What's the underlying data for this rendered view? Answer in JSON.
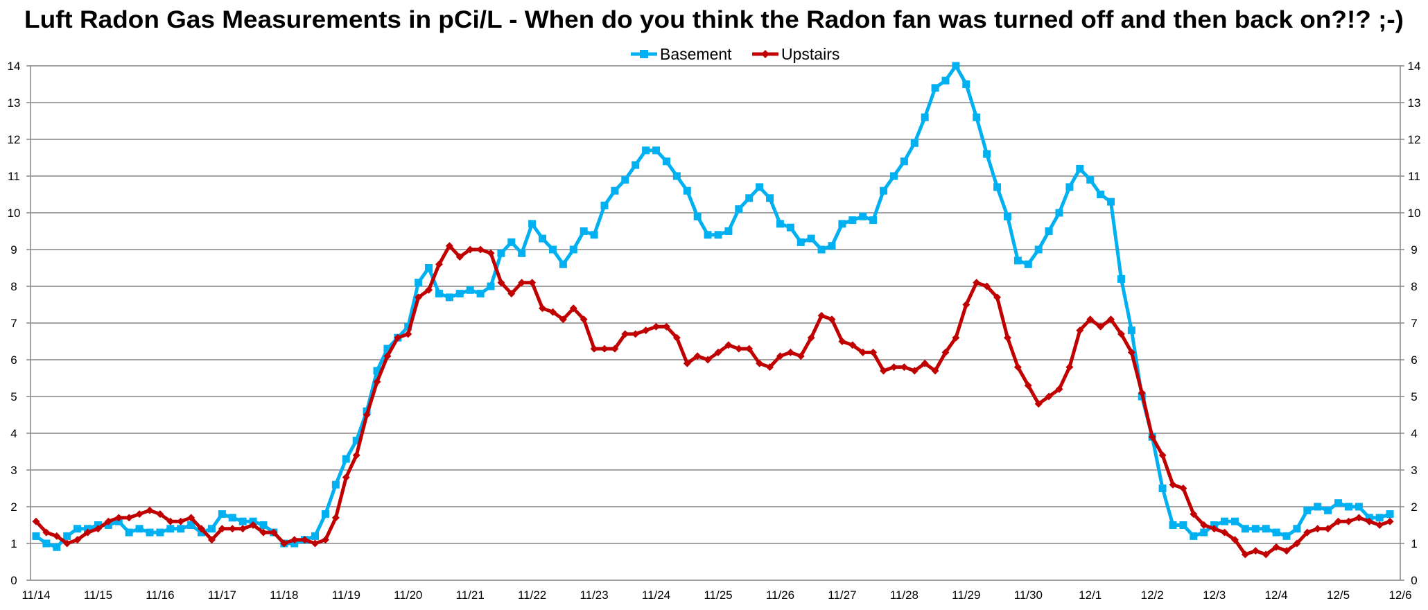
{
  "chart_data": {
    "type": "line",
    "title": "Luft Radon Gas Measurements in pCi/L - When do you think the Radon fan was turned off and then back on?!?  ;-)",
    "xlabel": "",
    "ylabel": "",
    "ylim": [
      0,
      14
    ],
    "yticks": [
      0,
      1,
      2,
      3,
      4,
      5,
      6,
      7,
      8,
      9,
      10,
      11,
      12,
      13,
      14
    ],
    "secondary_yticks": [
      0,
      1,
      2,
      3,
      4,
      5,
      6,
      7,
      8,
      9,
      10,
      11,
      12,
      13,
      14
    ],
    "grid": true,
    "legend_position": "top",
    "points_per_day": 6,
    "x_tick_labels": [
      "11/14",
      "11/15",
      "11/16",
      "11/17",
      "11/18",
      "11/19",
      "11/20",
      "11/21",
      "11/22",
      "11/23",
      "11/24",
      "11/25",
      "11/26",
      "11/27",
      "11/28",
      "11/29",
      "11/30",
      "12/1",
      "12/2",
      "12/3",
      "12/4",
      "12/5",
      "12/6"
    ],
    "series": [
      {
        "name": "Basement",
        "color": "#00B0F0",
        "marker": "square",
        "values": [
          1.2,
          1.0,
          0.9,
          1.2,
          1.4,
          1.4,
          1.5,
          1.5,
          1.6,
          1.3,
          1.4,
          1.3,
          1.3,
          1.4,
          1.4,
          1.5,
          1.3,
          1.4,
          1.8,
          1.7,
          1.6,
          1.6,
          1.5,
          1.3,
          1.0,
          1.0,
          1.1,
          1.2,
          1.8,
          2.6,
          3.3,
          3.8,
          4.6,
          5.7,
          6.3,
          6.6,
          6.9,
          8.1,
          8.5,
          7.8,
          7.7,
          7.8,
          7.9,
          7.8,
          8.0,
          8.9,
          9.2,
          8.9,
          9.7,
          9.3,
          9.0,
          8.6,
          9.0,
          9.5,
          9.4,
          10.2,
          10.6,
          10.9,
          11.3,
          11.7,
          11.7,
          11.4,
          11.0,
          10.6,
          9.9,
          9.4,
          9.4,
          9.5,
          10.1,
          10.4,
          10.7,
          10.4,
          9.7,
          9.6,
          9.2,
          9.3,
          9.0,
          9.1,
          9.7,
          9.8,
          9.9,
          9.8,
          10.6,
          11.0,
          11.4,
          11.9,
          12.6,
          13.4,
          13.6,
          14.0,
          13.5,
          12.6,
          11.6,
          10.7,
          9.9,
          8.7,
          8.6,
          9.0,
          9.5,
          10.0,
          10.7,
          11.2,
          10.9,
          10.5,
          10.3,
          8.2,
          6.8,
          5.0,
          3.9,
          2.5,
          1.5,
          1.5,
          1.2,
          1.3,
          1.5,
          1.6,
          1.6,
          1.4,
          1.4,
          1.4,
          1.3,
          1.2,
          1.4,
          1.9,
          2.0,
          1.9,
          2.1,
          2.0,
          2.0,
          1.7,
          1.7,
          1.8
        ]
      },
      {
        "name": "Upstairs",
        "color": "#C00000",
        "marker": "diamond",
        "values": [
          1.6,
          1.3,
          1.2,
          1.0,
          1.1,
          1.3,
          1.4,
          1.6,
          1.7,
          1.7,
          1.8,
          1.9,
          1.8,
          1.6,
          1.6,
          1.7,
          1.4,
          1.1,
          1.4,
          1.4,
          1.4,
          1.5,
          1.3,
          1.3,
          1.0,
          1.1,
          1.1,
          1.0,
          1.1,
          1.7,
          2.8,
          3.4,
          4.5,
          5.4,
          6.1,
          6.6,
          6.7,
          7.7,
          7.9,
          8.6,
          9.1,
          8.8,
          9.0,
          9.0,
          8.9,
          8.1,
          7.8,
          8.1,
          8.1,
          7.4,
          7.3,
          7.1,
          7.4,
          7.1,
          6.3,
          6.3,
          6.3,
          6.7,
          6.7,
          6.8,
          6.9,
          6.9,
          6.6,
          5.9,
          6.1,
          6.0,
          6.2,
          6.4,
          6.3,
          6.3,
          5.9,
          5.8,
          6.1,
          6.2,
          6.1,
          6.6,
          7.2,
          7.1,
          6.5,
          6.4,
          6.2,
          6.2,
          5.7,
          5.8,
          5.8,
          5.7,
          5.9,
          5.7,
          6.2,
          6.6,
          7.5,
          8.1,
          8.0,
          7.7,
          6.6,
          5.8,
          5.3,
          4.8,
          5.0,
          5.2,
          5.8,
          6.8,
          7.1,
          6.9,
          7.1,
          6.7,
          6.2,
          5.1,
          3.9,
          3.4,
          2.6,
          2.5,
          1.8,
          1.5,
          1.4,
          1.3,
          1.1,
          0.7,
          0.8,
          0.7,
          0.9,
          0.8,
          1.0,
          1.3,
          1.4,
          1.4,
          1.6,
          1.6,
          1.7,
          1.6,
          1.5,
          1.6
        ]
      }
    ]
  }
}
